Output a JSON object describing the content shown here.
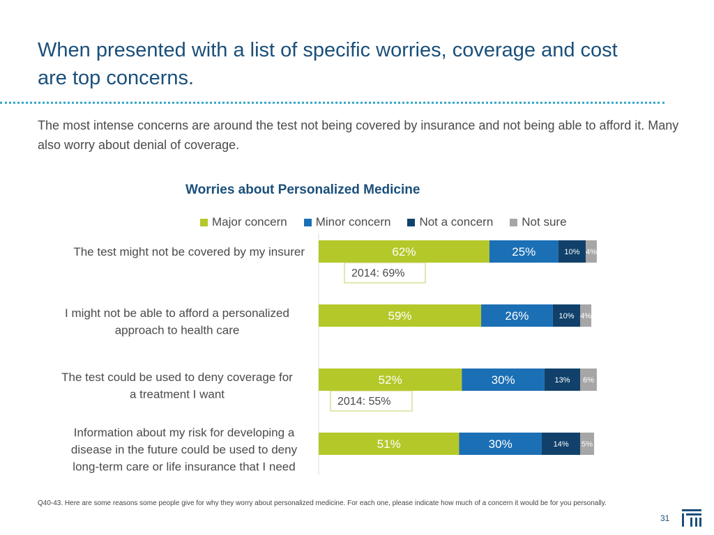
{
  "header": {
    "title": "When presented with a list of specific worries, coverage and cost are top concerns.",
    "subtitle": "The most intense concerns are around the test not being covered by insurance and not being able to afford it. Many also worry about denial of coverage."
  },
  "chart_data": {
    "type": "bar",
    "orientation": "horizontal",
    "stacked": true,
    "title": "Worries about Personalized Medicine",
    "categories": [
      "The test might not be covered by my insurer",
      "I might not be able to afford a personalized approach to health care",
      "The test could be used to deny coverage for a treatment I want",
      "Information about my risk for developing a disease in the future could be used to deny long-term care or life insurance that I need"
    ],
    "series": [
      {
        "name": "Major concern",
        "color": "#b5c82a",
        "values": [
          62,
          59,
          52,
          51
        ],
        "labels": [
          "62%",
          "59%",
          "52%",
          "51%"
        ]
      },
      {
        "name": "Minor concern",
        "color": "#1b6fb5",
        "values": [
          25,
          26,
          30,
          30
        ],
        "labels": [
          "25%",
          "26%",
          "30%",
          "30%"
        ]
      },
      {
        "name": "Not a concern",
        "color": "#11416b",
        "values": [
          10,
          10,
          13,
          14
        ],
        "labels": [
          "10%",
          "10%",
          "13%",
          "14%"
        ]
      },
      {
        "name": "Not sure",
        "color": "#a6a6a6",
        "values": [
          4,
          4,
          6,
          5
        ],
        "labels": [
          "4%",
          "4%",
          "6%",
          "5%"
        ]
      }
    ],
    "annotations": [
      {
        "category_index": 0,
        "text": "2014: 69%"
      },
      {
        "category_index": 2,
        "text": "2014: 55%"
      }
    ],
    "xlim": [
      0,
      100
    ],
    "legend_position": "top"
  },
  "footer": {
    "footnote": "Q40-43. Here are some reasons some people give for why they worry about personalized medicine. For each one, please indicate how much of a concern it would be for you personally.",
    "page_number": "31"
  }
}
